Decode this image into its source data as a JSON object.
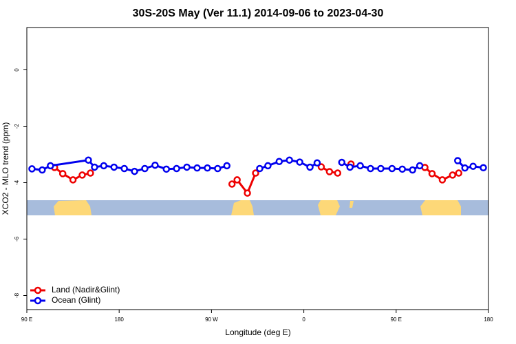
{
  "chart_data": {
    "type": "line",
    "title": "30S-20S May (Ver 11.1)   2014-09-06 to 2023-04-30",
    "x_label": "Longitude (deg E)",
    "y_label": "XCO2 - MLO trend (ppm)",
    "xlim": [
      90,
      540
    ],
    "xticks": [
      {
        "value": 90,
        "label": "90 E"
      },
      180,
      {
        "value": 270,
        "label": "90 W"
      },
      {
        "value": 360,
        "label": "0"
      },
      {
        "value": 450,
        "label": "90 E"
      },
      {
        "value": 540,
        "label": "180"
      }
    ],
    "ylim": [
      -8.5,
      1.5
    ],
    "yticks": [
      0,
      -2,
      -4,
      -6,
      -8
    ],
    "legend": "bottom-left",
    "series": [
      {
        "name": "Land (Nadir&Glint)",
        "color": "#ee0000",
        "x": [
          117,
          125,
          135,
          144,
          152,
          null,
          290,
          295,
          305,
          313,
          null,
          377,
          385,
          393,
          null,
          406,
          null,
          478,
          485,
          495,
          505,
          511
        ],
        "values": [
          -3.46,
          -3.68,
          -3.9,
          -3.73,
          -3.66,
          null,
          -4.05,
          -3.9,
          -4.37,
          -3.66,
          null,
          -3.44,
          -3.61,
          -3.66,
          null,
          -3.34,
          null,
          -3.46,
          -3.68,
          -3.9,
          -3.73,
          -3.66
        ]
      },
      {
        "name": "Ocean (Glint)",
        "color": "#0000ee",
        "x": [
          95,
          105,
          113,
          150,
          156,
          165,
          175,
          185,
          195,
          205,
          215,
          226,
          236,
          246,
          256,
          266,
          276,
          285,
          null,
          317,
          325,
          336,
          346,
          356,
          366,
          373,
          null,
          397,
          405,
          415,
          425,
          435,
          446,
          456,
          466,
          473,
          null,
          510,
          517,
          525,
          535
        ],
        "values": [
          -3.51,
          -3.55,
          -3.4,
          -3.2,
          -3.45,
          -3.4,
          -3.45,
          -3.5,
          -3.6,
          -3.5,
          -3.38,
          -3.52,
          -3.5,
          -3.45,
          -3.48,
          -3.48,
          -3.5,
          -3.4,
          null,
          -3.5,
          -3.4,
          -3.25,
          -3.2,
          -3.27,
          -3.45,
          -3.3,
          null,
          -3.28,
          -3.45,
          -3.4,
          -3.5,
          -3.5,
          -3.5,
          -3.52,
          -3.55,
          -3.4,
          null,
          -3.22,
          -3.48,
          -3.42,
          -3.47
        ]
      }
    ]
  }
}
